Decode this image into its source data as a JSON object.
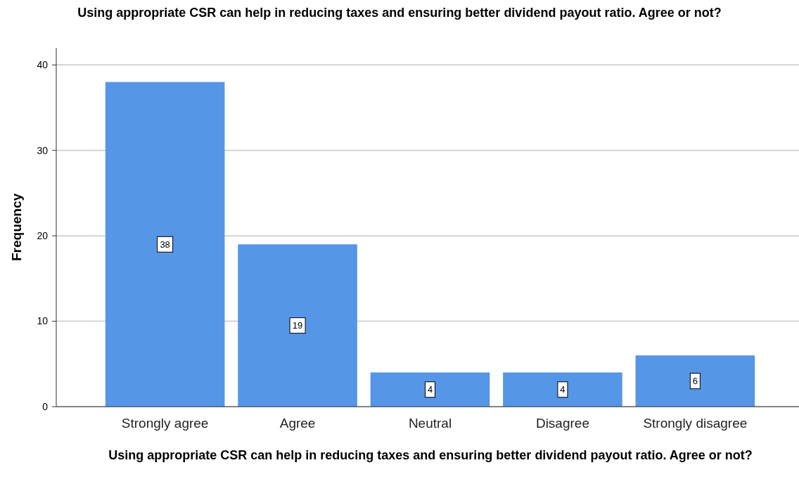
{
  "chart_data": {
    "type": "bar",
    "title": "Using appropriate CSR can help in reducing taxes and ensuring better dividend payout ratio. Agree or not?",
    "xlabel": "Using appropriate CSR can help in reducing taxes and ensuring better dividend payout ratio. Agree or not?",
    "ylabel": "Frequency",
    "categories": [
      "Strongly agree",
      "Agree",
      "Neutral",
      "Disagree",
      "Strongly disagree"
    ],
    "values": [
      38,
      19,
      4,
      4,
      6
    ],
    "color": "#5596e6",
    "ylim": [
      0,
      42
    ],
    "yticks": [
      0,
      10,
      20,
      30,
      40
    ],
    "grid": "y",
    "data_labels": true
  }
}
